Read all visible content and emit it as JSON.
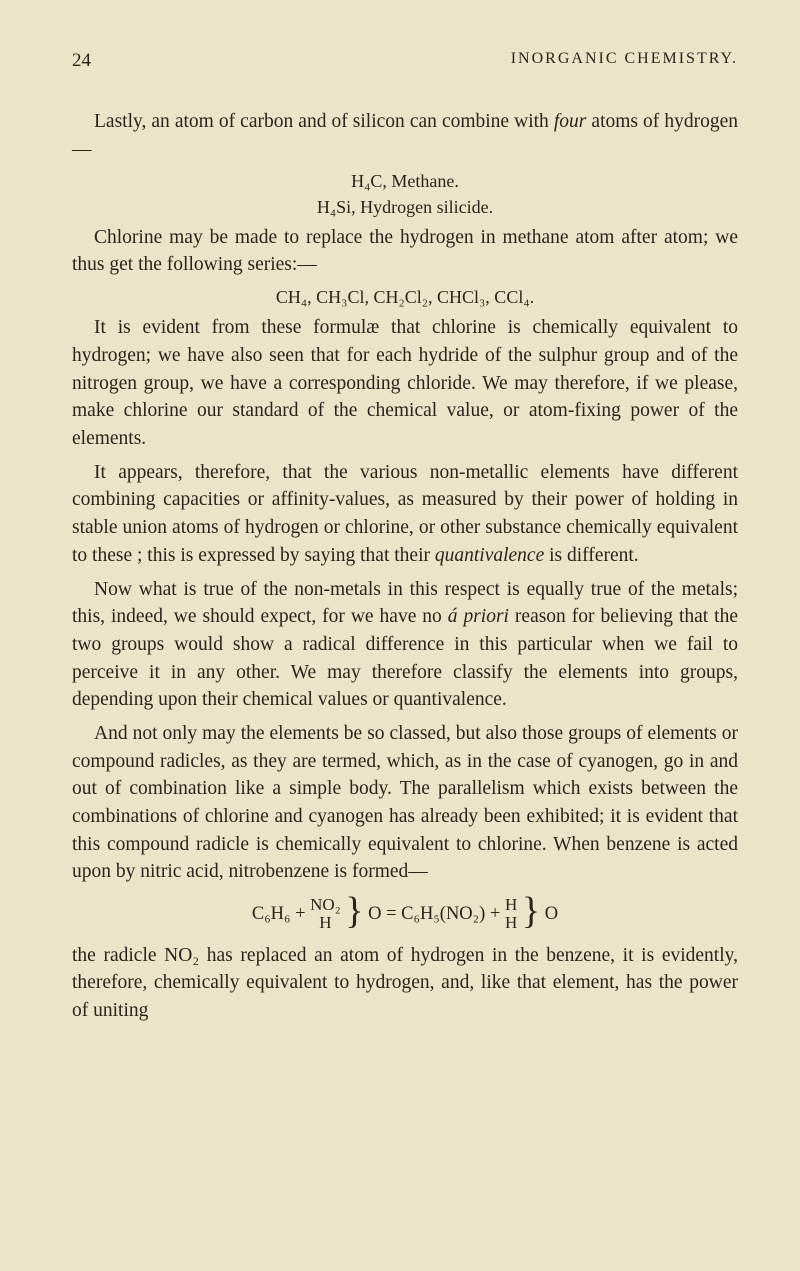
{
  "pageNumber": "24",
  "chapterTitle": "INORGANIC CHEMISTRY.",
  "p1": "Lastly, an atom of carbon and of silicon can combine with ",
  "p1_italic": "four",
  "p1_cont": " atoms of hydrogen—",
  "f1_line1": "H₄C,  Methane.",
  "f1_line2": "H₄Si,  Hydrogen silicide.",
  "p2": "Chlorine may be made to replace the hydrogen in methane atom after atom; we thus get the following series:—",
  "f2": "CH₄, CH₃Cl, CH₂Cl₂, CHCl₃, CCl₄.",
  "p3": "It is evident from these formulæ that chlorine is chemically equivalent to hydrogen; we have also seen that for each hydride of the sulphur group and of the nitrogen group, we have a corresponding chloride. We may therefore, if we please, make chlorine our standard of the chemical value, or atom-fixing power of the elements.",
  "p4_a": "It appears, therefore, that the various non-metallic elements have different combining capacities or affinity-values, as measured by their power of holding in stable union atoms of hydrogen or chlorine, or other substance chemically equivalent to these ; this is expressed by saying that their ",
  "p4_i1": "quanti­valence",
  "p4_b": " is different.",
  "p5_a": "Now what is true of the non-metals in this respect is equally true of the metals; this, indeed, we should expect, for we have no ",
  "p5_i1": "á priori",
  "p5_b": " reason for believing that the two groups would show a radical difference in this particular when we fail to perceive it in any other. We may therefore classify the elements into groups, depending upon their chemical values or quantivalence.",
  "p6": "And not only may the elements be so classed, but also those groups of elements or compound radicles, as they are termed, which, as in the case of cyanogen, go in and out of combination like a simple body. The parallelism which exists between the combinations of chlorine and cyanogen has already been exhibited; it is evident that this compound radicle is chemically equivalent to chlorine. When benzene is acted upon by nitric acid, nitrobenzene is formed—",
  "eq_left_compound": "C₆H₆ +",
  "eq_top1": "NO₂",
  "eq_bot1": "H",
  "eq_mid": "O = C₆H₅(NO₂) +",
  "eq_top2": "H",
  "eq_bot2": "H",
  "eq_end": "O",
  "p7": "the radicle NO₂ has replaced an atom of hydrogen in the benzene, it is evidently, therefore, chemically equivalent to hydrogen, and, like that element, has the power of uniting"
}
